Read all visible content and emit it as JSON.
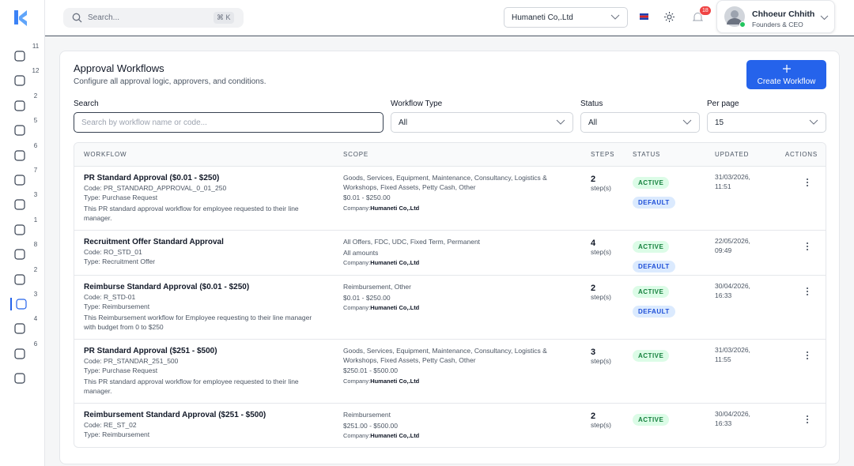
{
  "topbar": {
    "search_placeholder": "Search...",
    "shortcut": "⌘ K",
    "company": "Humaneti Co,.Ltd",
    "notifications": "18",
    "user_name": "Chhoeur Chhith",
    "user_role": "Founders & CEO"
  },
  "sidebar": {
    "badges": [
      "11",
      "12",
      "2",
      "5",
      "6",
      "7",
      "3",
      "1",
      "8",
      "2",
      "3",
      "4",
      "6"
    ]
  },
  "page": {
    "title": "Approval Workflows",
    "subtitle": "Configure all approval logic, approvers, and conditions.",
    "create_button": "Create Workflow"
  },
  "filters": {
    "search_label": "Search",
    "search_placeholder": "Search by workflow name or code...",
    "type_label": "Workflow Type",
    "type_value": "All",
    "status_label": "Status",
    "status_value": "All",
    "per_page_label": "Per page",
    "per_page_value": "15"
  },
  "table": {
    "columns": [
      "WORKFLOW",
      "SCOPE",
      "STEPS",
      "STATUS",
      "UPDATED",
      "ACTIONS"
    ],
    "rows": [
      {
        "name": "PR Standard Approval ($0.01 - $250)",
        "code": "Code: PR_STANDARD_APPROVAL_0_01_250",
        "type": "Type: Purchase Request",
        "description": "This PR standard approval workflow for employee requested to their line manager.",
        "scope": "Goods, Services, Equipment, Maintenance, Consultancy, Logistics & Workshops, Fixed Assets, Petty Cash, Other",
        "amount": "$0.01 - $250.00",
        "company_label": "Company:",
        "company": "Humaneti Co,.Ltd",
        "steps": "2",
        "steps_unit": "step(s)",
        "statuses": [
          "ACTIVE",
          "DEFAULT"
        ],
        "updated": "31/03/2026, 11:51"
      },
      {
        "name": "Recruitment Offer Standard Approval",
        "code": "Code: RO_STD_01",
        "type": "Type: Recruitment Offer",
        "description": null,
        "scope": "All Offers, FDC, UDC, Fixed Term, Permanent",
        "amount": "All amounts",
        "company_label": "Company:",
        "company": "Humaneti Co,.Ltd",
        "steps": "4",
        "steps_unit": "step(s)",
        "statuses": [
          "ACTIVE",
          "DEFAULT"
        ],
        "updated": "22/05/2026, 09:49"
      },
      {
        "name": "Reimburse Standard Approval ($0.01 - $250)",
        "code": "Code: R_STD-01",
        "type": "Type: Reimbursement",
        "description": "This Reimbursement workflow for Employee requesting to their line manager with budget from 0 to $250",
        "scope": "Reimbursement, Other",
        "amount": "$0.01 - $250.00",
        "company_label": "Company:",
        "company": "Humaneti Co,.Ltd",
        "steps": "2",
        "steps_unit": "step(s)",
        "statuses": [
          "ACTIVE",
          "DEFAULT"
        ],
        "updated": "30/04/2026, 16:33"
      },
      {
        "name": "PR Standard Approval ($251 - $500)",
        "code": "Code: PR_STANDAR_251_500",
        "type": "Type: Purchase Request",
        "description": "This PR standard approval workflow for employee requested to their line manager.",
        "scope": "Goods, Services, Equipment, Maintenance, Consultancy, Logistics & Workshops, Fixed Assets, Petty Cash, Other",
        "amount": "$250.01 - $500.00",
        "company_label": "Company:",
        "company": "Humaneti Co,.Ltd",
        "steps": "3",
        "steps_unit": "step(s)",
        "statuses": [
          "ACTIVE"
        ],
        "updated": "31/03/2026, 11:55"
      },
      {
        "name": "Reimbursement Standard Approval ($251 - $500)",
        "code": "Code: RE_ST_02",
        "type": "Type: Reimbursement",
        "description": null,
        "scope": "Reimbursement",
        "amount": "$251.00 - $500.00",
        "company_label": "Company:",
        "company": "Humaneti Co,.Ltd",
        "steps": "2",
        "steps_unit": "step(s)",
        "statuses": [
          "ACTIVE"
        ],
        "updated": "30/04/2026, 16:33"
      }
    ]
  }
}
